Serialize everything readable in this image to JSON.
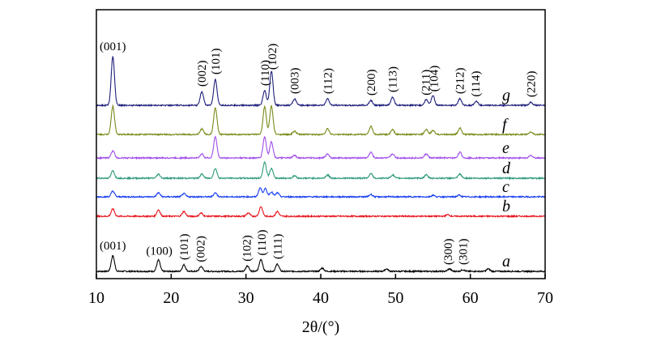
{
  "chart_data": {
    "type": "line",
    "xlabel": "2θ/(°)",
    "xlim": [
      10,
      70
    ],
    "x_ticks": [
      "10",
      "20",
      "30",
      "40",
      "50",
      "60",
      "70"
    ],
    "grid": false,
    "series": [
      {
        "name": "a",
        "color": "#000000",
        "peaks": [
          {
            "x": 12.2,
            "h": 19
          },
          {
            "x": 18.3,
            "h": 14
          },
          {
            "x": 21.7,
            "h": 8
          },
          {
            "x": 24.0,
            "h": 6
          },
          {
            "x": 30.2,
            "h": 7
          },
          {
            "x": 32.0,
            "h": 15
          },
          {
            "x": 34.2,
            "h": 9
          },
          {
            "x": 40.2,
            "h": 4
          },
          {
            "x": 48.8,
            "h": 3
          },
          {
            "x": 57.2,
            "h": 3
          },
          {
            "x": 59.0,
            "h": 2
          },
          {
            "x": 62.4,
            "h": 3
          }
        ],
        "annotations": [
          {
            "x": 12.2,
            "text": "(001)",
            "rotate": false
          },
          {
            "x": 18.4,
            "text": "(100)",
            "rotate": false
          },
          {
            "x": 21.7,
            "text": "(101)",
            "rotate": true
          },
          {
            "x": 23.9,
            "text": "(002)",
            "rotate": true
          },
          {
            "x": 30.1,
            "text": "(102)",
            "rotate": true
          },
          {
            "x": 32.1,
            "text": "(110)",
            "rotate": true
          },
          {
            "x": 34.2,
            "text": "(111)",
            "rotate": true
          },
          {
            "x": 57.0,
            "text": "(300)",
            "rotate": true
          },
          {
            "x": 59.0,
            "text": "(301)",
            "rotate": true
          }
        ]
      },
      {
        "name": "b",
        "color": "#e8141c",
        "peaks": [
          {
            "x": 12.2,
            "h": 9
          },
          {
            "x": 18.3,
            "h": 8
          },
          {
            "x": 21.7,
            "h": 6
          },
          {
            "x": 24.0,
            "h": 4
          },
          {
            "x": 30.3,
            "h": 4
          },
          {
            "x": 32.0,
            "h": 12
          },
          {
            "x": 34.2,
            "h": 6
          },
          {
            "x": 57.0,
            "h": 2
          }
        ],
        "annotations": []
      },
      {
        "name": "c",
        "color": "#1a3ff0",
        "peaks": [
          {
            "x": 12.2,
            "h": 7
          },
          {
            "x": 18.3,
            "h": 5
          },
          {
            "x": 21.7,
            "h": 4
          },
          {
            "x": 25.9,
            "h": 5
          },
          {
            "x": 31.9,
            "h": 11
          },
          {
            "x": 32.6,
            "h": 10
          },
          {
            "x": 33.4,
            "h": 6
          },
          {
            "x": 34.2,
            "h": 5
          },
          {
            "x": 46.7,
            "h": 3
          },
          {
            "x": 55.0,
            "h": 2
          },
          {
            "x": 58.5,
            "h": 2
          }
        ],
        "annotations": []
      },
      {
        "name": "d",
        "color": "#2e9a7c",
        "peaks": [
          {
            "x": 12.2,
            "h": 9
          },
          {
            "x": 18.3,
            "h": 5
          },
          {
            "x": 24.1,
            "h": 5
          },
          {
            "x": 25.9,
            "h": 12
          },
          {
            "x": 32.5,
            "h": 20
          },
          {
            "x": 33.4,
            "h": 12
          },
          {
            "x": 36.5,
            "h": 3
          },
          {
            "x": 40.9,
            "h": 4
          },
          {
            "x": 46.7,
            "h": 6
          },
          {
            "x": 49.6,
            "h": 4
          },
          {
            "x": 54.1,
            "h": 4
          },
          {
            "x": 58.6,
            "h": 5
          }
        ],
        "annotations": []
      },
      {
        "name": "e",
        "color": "#a04ee8",
        "peaks": [
          {
            "x": 12.2,
            "h": 9
          },
          {
            "x": 24.1,
            "h": 5
          },
          {
            "x": 25.9,
            "h": 26
          },
          {
            "x": 32.5,
            "h": 26
          },
          {
            "x": 33.4,
            "h": 20
          },
          {
            "x": 36.5,
            "h": 3
          },
          {
            "x": 40.9,
            "h": 5
          },
          {
            "x": 46.7,
            "h": 7
          },
          {
            "x": 49.6,
            "h": 5
          },
          {
            "x": 54.1,
            "h": 5
          },
          {
            "x": 58.6,
            "h": 7
          },
          {
            "x": 68.1,
            "h": 3
          }
        ],
        "annotations": []
      },
      {
        "name": "f",
        "color": "#7b8a1a",
        "peaks": [
          {
            "x": 12.2,
            "h": 35
          },
          {
            "x": 24.1,
            "h": 7
          },
          {
            "x": 25.9,
            "h": 33
          },
          {
            "x": 32.5,
            "h": 34
          },
          {
            "x": 33.4,
            "h": 35
          },
          {
            "x": 36.5,
            "h": 4
          },
          {
            "x": 40.9,
            "h": 7
          },
          {
            "x": 46.7,
            "h": 10
          },
          {
            "x": 49.6,
            "h": 6
          },
          {
            "x": 54.1,
            "h": 6
          },
          {
            "x": 55.0,
            "h": 5
          },
          {
            "x": 58.6,
            "h": 8
          },
          {
            "x": 68.1,
            "h": 3
          }
        ],
        "annotations": []
      },
      {
        "name": "g",
        "color": "#1f1f7a",
        "peaks": [
          {
            "x": 12.2,
            "h": 60
          },
          {
            "x": 24.1,
            "h": 17
          },
          {
            "x": 25.9,
            "h": 32
          },
          {
            "x": 32.5,
            "h": 18
          },
          {
            "x": 33.4,
            "h": 42
          },
          {
            "x": 36.5,
            "h": 8
          },
          {
            "x": 40.9,
            "h": 8
          },
          {
            "x": 46.7,
            "h": 6
          },
          {
            "x": 49.6,
            "h": 10
          },
          {
            "x": 54.1,
            "h": 7
          },
          {
            "x": 55.0,
            "h": 12
          },
          {
            "x": 58.6,
            "h": 8
          },
          {
            "x": 60.8,
            "h": 5
          },
          {
            "x": 68.1,
            "h": 4
          }
        ],
        "annotations": [
          {
            "x": 12.2,
            "text": "(001)",
            "rotate": false
          },
          {
            "x": 24.1,
            "text": "(002)",
            "rotate": true
          },
          {
            "x": 25.9,
            "text": "(101)",
            "rotate": true
          },
          {
            "x": 32.5,
            "text": "(110)",
            "rotate": true
          },
          {
            "x": 33.5,
            "text": "(102)",
            "rotate": true
          },
          {
            "x": 36.5,
            "text": "(003)",
            "rotate": true
          },
          {
            "x": 40.9,
            "text": "(112)",
            "rotate": true
          },
          {
            "x": 46.7,
            "text": "(200)",
            "rotate": true
          },
          {
            "x": 49.6,
            "text": "(113)",
            "rotate": true
          },
          {
            "x": 54.0,
            "text": "(211)",
            "rotate": true
          },
          {
            "x": 55.1,
            "text": "(104)",
            "rotate": true
          },
          {
            "x": 58.6,
            "text": "(212)",
            "rotate": true
          },
          {
            "x": 60.7,
            "text": "(114)",
            "rotate": true
          },
          {
            "x": 68.1,
            "text": "(220)",
            "rotate": true
          }
        ]
      }
    ]
  }
}
